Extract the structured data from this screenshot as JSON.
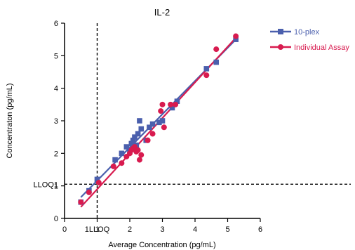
{
  "chart_data": {
    "type": "scatter",
    "title": "IL-2",
    "xlabel": "Average Concentration  (pg/mL)",
    "ylabel": "Concentraton  (pg/mL)",
    "xlim": [
      0,
      6
    ],
    "ylim": [
      0,
      6
    ],
    "xticks": [
      0,
      1,
      2,
      3,
      4,
      5,
      6
    ],
    "yticks": [
      0,
      1,
      2,
      3,
      4,
      5,
      6
    ],
    "xtick_labels": [
      "0",
      "1",
      "2",
      "3",
      "4",
      "5",
      "6"
    ],
    "ytick_labels": [
      "0",
      "1",
      "2",
      "3",
      "4",
      "5",
      "6"
    ],
    "grid": false,
    "legend_position": "top-right",
    "reference_lines": [
      {
        "orientation": "vertical",
        "value": 1.0,
        "label": "1LLOQ",
        "style": "dashed"
      },
      {
        "orientation": "horizontal",
        "value": 1.05,
        "label": "LLOQ1",
        "style": "dashed"
      }
    ],
    "series": [
      {
        "name": "10-plex",
        "color": "#4a5fad",
        "marker": "square",
        "x": [
          0.5,
          0.75,
          1.0,
          1.55,
          1.75,
          1.9,
          2.0,
          2.05,
          2.1,
          2.15,
          2.2,
          2.25,
          2.3,
          2.35,
          2.5,
          2.6,
          2.7,
          2.9,
          3.0,
          3.3,
          3.45,
          4.35,
          4.65,
          5.25
        ],
        "y": [
          0.5,
          0.85,
          1.2,
          1.8,
          2.0,
          2.2,
          2.05,
          2.3,
          2.4,
          2.5,
          2.25,
          2.6,
          3.0,
          2.75,
          2.4,
          2.8,
          2.9,
          2.95,
          3.0,
          3.4,
          3.6,
          4.6,
          4.8,
          5.5
        ],
        "trend": {
          "x": [
            0.5,
            5.25
          ],
          "y": [
            0.65,
            5.5
          ]
        }
      },
      {
        "name": "Individual Assay",
        "color": "#d81b4f",
        "marker": "circle",
        "x": [
          0.5,
          0.75,
          1.05,
          1.5,
          1.75,
          1.9,
          2.0,
          2.05,
          2.1,
          2.15,
          2.2,
          2.25,
          2.3,
          2.35,
          2.55,
          2.7,
          2.95,
          3.0,
          3.05,
          3.25,
          3.4,
          4.35,
          4.65,
          5.25
        ],
        "y": [
          0.5,
          0.8,
          1.1,
          1.6,
          1.7,
          1.9,
          2.0,
          2.1,
          2.15,
          2.2,
          2.05,
          2.1,
          1.8,
          1.95,
          2.4,
          2.6,
          3.3,
          3.5,
          2.8,
          3.5,
          3.5,
          4.4,
          5.2,
          5.6
        ],
        "trend": {
          "x": [
            0.5,
            5.25
          ],
          "y": [
            0.35,
            5.55
          ]
        }
      }
    ]
  }
}
